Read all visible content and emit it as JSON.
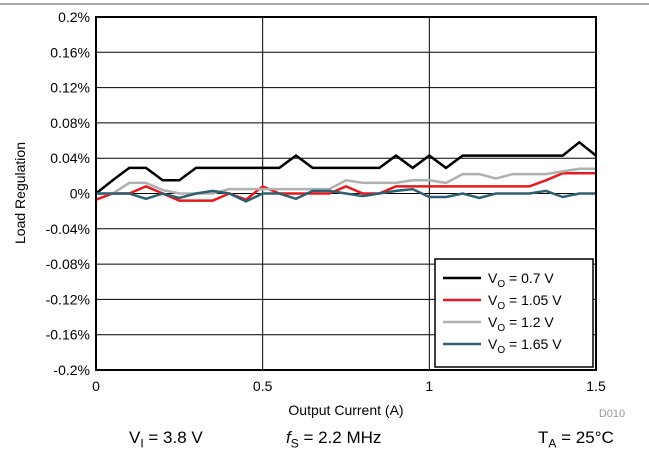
{
  "chart_data": {
    "type": "line",
    "xlabel": "Output Current (A)",
    "ylabel": "Load Regulation",
    "xlim": [
      0,
      1.5
    ],
    "ylim": [
      -0.2,
      0.2
    ],
    "x_ticks": [
      "0",
      "0.5",
      "1",
      "1.5"
    ],
    "y_ticks": [
      "0.2%",
      "0.16%",
      "0.12%",
      "0.08%",
      "0.04%",
      "0%",
      "-0.04%",
      "-0.08%",
      "-0.12%",
      "-0.16%",
      "-0.2%"
    ],
    "grid": true,
    "legend_position": "bottom-right",
    "code": "D010",
    "x": [
      0,
      0.05,
      0.1,
      0.15,
      0.2,
      0.25,
      0.3,
      0.35,
      0.4,
      0.45,
      0.5,
      0.55,
      0.6,
      0.65,
      0.7,
      0.75,
      0.8,
      0.85,
      0.9,
      0.95,
      1.0,
      1.05,
      1.1,
      1.15,
      1.2,
      1.25,
      1.3,
      1.35,
      1.4,
      1.45,
      1.5
    ],
    "series": [
      {
        "name_main": "V",
        "name_sub": "O",
        "name_rest": " = 0.7 V",
        "color": "#000000",
        "values": [
          0,
          0.015,
          0.029,
          0.029,
          0.015,
          0.015,
          0.029,
          0.029,
          0.029,
          0.029,
          0.029,
          0.029,
          0.043,
          0.029,
          0.029,
          0.029,
          0.029,
          0.029,
          0.043,
          0.029,
          0.043,
          0.029,
          0.043,
          0.043,
          0.043,
          0.043,
          0.043,
          0.043,
          0.043,
          0.058,
          0.043
        ]
      },
      {
        "name_main": "V",
        "name_sub": "O",
        "name_rest": " = 1.05 V",
        "color": "#e8191c",
        "values": [
          -0.007,
          0,
          0,
          0.008,
          0,
          -0.008,
          -0.008,
          -0.008,
          0,
          -0.007,
          0.008,
          0,
          0,
          0,
          0,
          0.008,
          0,
          0,
          0.008,
          0.008,
          0.008,
          0.008,
          0.008,
          0.008,
          0.008,
          0.008,
          0.008,
          0.015,
          0.023,
          0.023,
          0.023
        ]
      },
      {
        "name_main": "V",
        "name_sub": "O",
        "name_rest": " = 1.2 V",
        "color": "#b0b0b0",
        "values": [
          0,
          0,
          0.012,
          0.012,
          0.004,
          0,
          0,
          0,
          0.005,
          0.005,
          0.005,
          0.005,
          0.005,
          0.005,
          0.005,
          0.015,
          0.012,
          0.012,
          0.012,
          0.015,
          0.015,
          0.012,
          0.022,
          0.022,
          0.017,
          0.022,
          0.022,
          0.022,
          0.025,
          0.028,
          0.028
        ]
      },
      {
        "name_main": "V",
        "name_sub": "O",
        "name_rest": " = 1.65 V",
        "color": "#2e5f73",
        "values": [
          0,
          0,
          0,
          -0.006,
          0,
          -0.005,
          0,
          0.003,
          0,
          -0.009,
          0,
          0,
          -0.006,
          0.003,
          0.003,
          0,
          -0.003,
          0,
          0.003,
          0.005,
          -0.004,
          -0.004,
          0,
          -0.005,
          0,
          0,
          0,
          0.003,
          -0.004,
          0,
          0
        ]
      }
    ]
  },
  "conditions": {
    "vi_main": "V",
    "vi_sub": "I",
    "vi_rest": " = 3.8 V",
    "fs_main": "f",
    "fs_sub": "S",
    "fs_rest": " = 2.2 MHz",
    "ta_main": "T",
    "ta_sub": "A",
    "ta_rest": " = 25°C"
  }
}
